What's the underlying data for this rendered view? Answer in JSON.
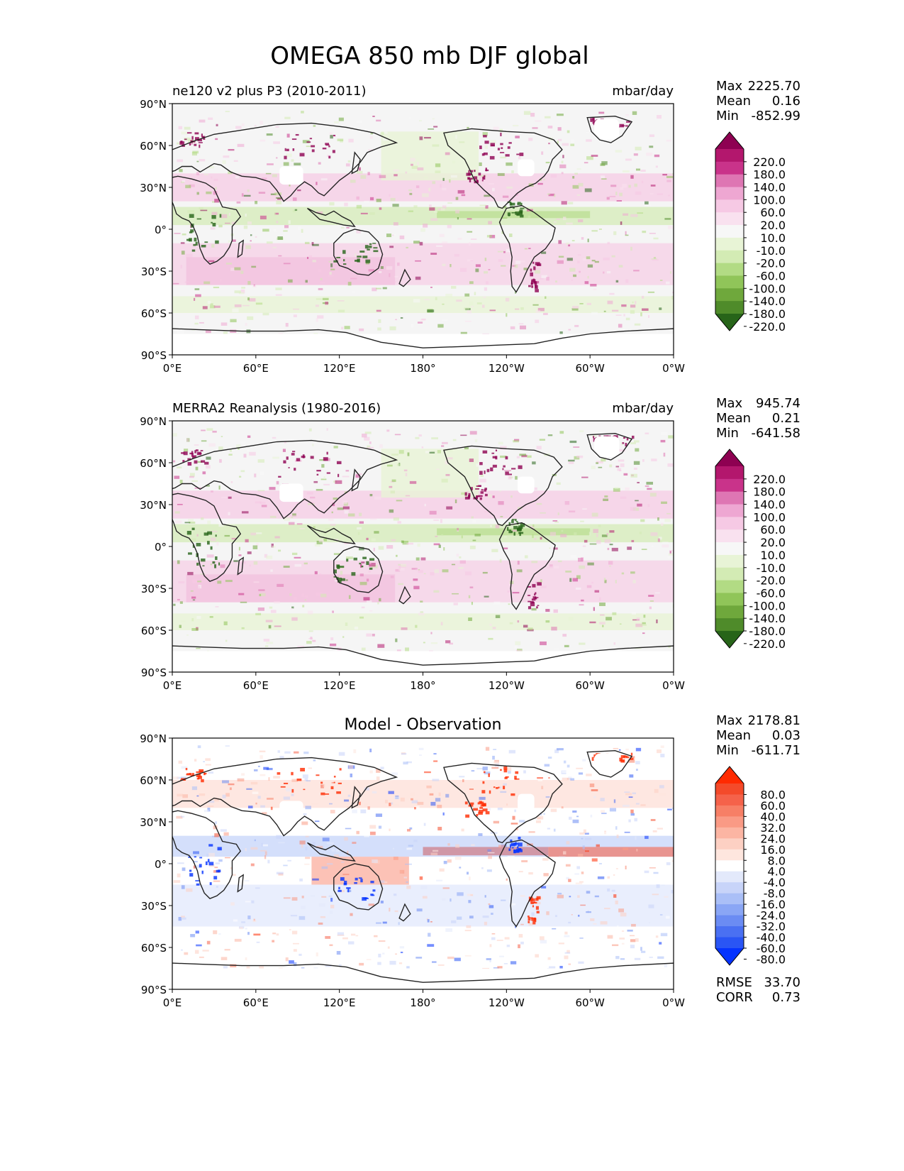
{
  "figure_title": "OMEGA 850 mb DJF global",
  "axis_ticks": {
    "lat": [
      "90°N",
      "60°N",
      "30°N",
      "0°",
      "30°S",
      "60°S",
      "90°S"
    ],
    "lon": [
      "0°E",
      "60°E",
      "120°E",
      "180°",
      "120°W",
      "60°W",
      "0°W"
    ]
  },
  "panels": [
    {
      "title_left": "ne120 v2 plus P3 (2010-2011)",
      "title_center": "",
      "units": "mbar/day",
      "stats": {
        "max_label": "Max",
        "max": "2225.70",
        "mean_label": "Mean",
        "mean": "0.16",
        "min_label": "Min",
        "min": "-852.99"
      },
      "colorbar": {
        "ticks": [
          "220.0",
          "180.0",
          "140.0",
          "100.0",
          "60.0",
          "20.0",
          "10.0",
          "-10.0",
          "-20.0",
          "-60.0",
          "-100.0",
          "-140.0",
          "-180.0",
          "-220.0"
        ],
        "colors": [
          "#8e0152",
          "#b3176d",
          "#c9338a",
          "#de76b3",
          "#eea7d2",
          "#f6c9e4",
          "#f9e1ef",
          "#f7f7f7",
          "#e8f4d6",
          "#d3ebb4",
          "#b2db84",
          "#90c559",
          "#6fa83c",
          "#4f8b2a",
          "#276419"
        ]
      },
      "footer": null
    },
    {
      "title_left": "MERRA2 Reanalysis (1980-2016)",
      "title_center": "",
      "units": "mbar/day",
      "stats": {
        "max_label": "Max",
        "max": "945.74",
        "mean_label": "Mean",
        "mean": "0.21",
        "min_label": "Min",
        "min": "-641.58"
      },
      "colorbar": {
        "ticks": [
          "220.0",
          "180.0",
          "140.0",
          "100.0",
          "60.0",
          "20.0",
          "10.0",
          "-10.0",
          "-20.0",
          "-60.0",
          "-100.0",
          "-140.0",
          "-180.0",
          "-220.0"
        ],
        "colors": [
          "#8e0152",
          "#b3176d",
          "#c9338a",
          "#de76b3",
          "#eea7d2",
          "#f6c9e4",
          "#f9e1ef",
          "#f7f7f7",
          "#e8f4d6",
          "#d3ebb4",
          "#b2db84",
          "#90c559",
          "#6fa83c",
          "#4f8b2a",
          "#276419"
        ]
      },
      "footer": null
    },
    {
      "title_left": "",
      "title_center": "Model - Observation",
      "units": "",
      "stats": {
        "max_label": "Max",
        "max": "2178.81",
        "mean_label": "Mean",
        "mean": "0.03",
        "min_label": "Min",
        "min": "-611.71"
      },
      "colorbar": {
        "ticks": [
          "80.0",
          "60.0",
          "40.0",
          "32.0",
          "24.0",
          "16.0",
          "8.0",
          "4.0",
          "-4.0",
          "-8.0",
          "-16.0",
          "-24.0",
          "-32.0",
          "-40.0",
          "-60.0",
          "-80.0"
        ],
        "colors": [
          "#ff2a00",
          "#f44a2a",
          "#f5624a",
          "#f77f66",
          "#fa9a85",
          "#fcb5a3",
          "#fdd0c3",
          "#fee6de",
          "#ffffff",
          "#e3e9fb",
          "#c8d4f9",
          "#aabff7",
          "#8aa6f5",
          "#6b8cf3",
          "#4a70f2",
          "#2a55f4",
          "#0533ff"
        ]
      },
      "footer": {
        "rmse_label": "RMSE",
        "rmse": "33.70",
        "corr_label": "CORR",
        "corr": "0.73"
      }
    }
  ],
  "colors": {
    "pos_primary": "#c51b7d",
    "neg_primary": "#4d9221",
    "diff_pos": "#e8341c",
    "diff_neg": "#2c5ef0",
    "coastline": "#222222",
    "ocean_neutral": "#f5f5f5"
  }
}
